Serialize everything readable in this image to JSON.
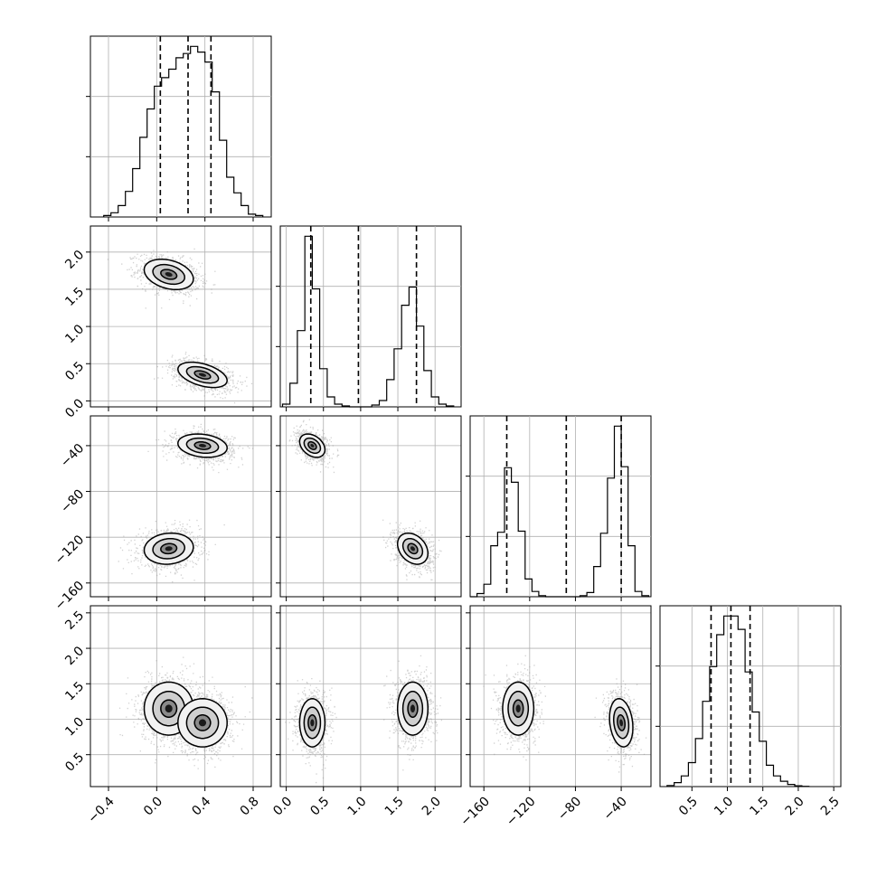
{
  "chart_data": {
    "type": "corner",
    "parameters": [
      "",
      "",
      "",
      ""
    ],
    "axes": [
      {
        "range": [
          -0.55,
          0.95
        ],
        "ticks": [
          -0.4,
          0.0,
          0.4,
          0.8
        ],
        "tick_labels": [
          "−0.4",
          "0.0",
          "0.4",
          "0.8"
        ]
      },
      {
        "range": [
          -0.08,
          2.35
        ],
        "ticks": [
          0.0,
          0.5,
          1.0,
          1.5,
          2.0
        ],
        "tick_labels": [
          "0.0",
          "0.5",
          "1.0",
          "1.5",
          "2.0"
        ]
      },
      {
        "range": [
          -172,
          -14
        ],
        "ticks": [
          -160,
          -120,
          -80,
          -40
        ],
        "tick_labels": [
          "−160",
          "−120",
          "−80",
          "−40"
        ]
      },
      {
        "range": [
          0.05,
          2.6
        ],
        "ticks": [
          0.5,
          1.0,
          1.5,
          2.0,
          2.5
        ],
        "tick_labels": [
          "0.5",
          "1.0",
          "1.5",
          "2.0",
          "2.5"
        ]
      }
    ],
    "quantiles": [
      [
        0.03,
        0.26,
        0.45
      ],
      [
        0.33,
        0.97,
        1.75
      ],
      [
        -140,
        -88,
        -40
      ],
      [
        0.77,
        1.05,
        1.32
      ]
    ],
    "histograms": [
      {
        "edges": [
          -0.44,
          -0.38,
          -0.32,
          -0.26,
          -0.2,
          -0.14,
          -0.08,
          -0.02,
          0.04,
          0.1,
          0.16,
          0.22,
          0.28,
          0.34,
          0.4,
          0.46,
          0.52,
          0.58,
          0.64,
          0.7,
          0.76,
          0.82,
          0.88
        ],
        "counts": [
          5,
          15,
          40,
          90,
          170,
          280,
          380,
          460,
          490,
          520,
          560,
          575,
          600,
          580,
          545,
          440,
          270,
          140,
          85,
          40,
          10,
          5
        ]
      },
      {
        "edges": [
          -0.05,
          0.05,
          0.15,
          0.25,
          0.35,
          0.45,
          0.55,
          0.65,
          0.75,
          0.85,
          0.95,
          1.05,
          1.15,
          1.25,
          1.35,
          1.45,
          1.55,
          1.65,
          1.75,
          1.85,
          1.95,
          2.05,
          2.15,
          2.25
        ],
        "counts": [
          15,
          130,
          420,
          940,
          650,
          210,
          55,
          15,
          5,
          0,
          0,
          0,
          10,
          35,
          150,
          320,
          560,
          660,
          445,
          200,
          55,
          15,
          5
        ]
      },
      {
        "edges": [
          -172,
          -166,
          -160,
          -154,
          -148,
          -142,
          -136,
          -130,
          -124,
          -118,
          -112,
          -106,
          -100,
          -94,
          -88,
          -82,
          -76,
          -70,
          -64,
          -58,
          -52,
          -46,
          -40,
          -34,
          -28,
          -22,
          -16
        ],
        "counts": [
          0,
          15,
          60,
          245,
          310,
          620,
          550,
          315,
          85,
          25,
          5,
          0,
          0,
          0,
          0,
          0,
          5,
          20,
          145,
          305,
          570,
          820,
          625,
          245,
          25,
          5
        ]
      },
      {
        "edges": [
          0.15,
          0.25,
          0.35,
          0.45,
          0.55,
          0.65,
          0.75,
          0.85,
          0.95,
          1.05,
          1.15,
          1.25,
          1.35,
          1.45,
          1.55,
          1.65,
          1.75,
          1.85,
          1.95,
          2.05,
          2.15
        ],
        "counts": [
          4,
          15,
          40,
          90,
          180,
          320,
          450,
          570,
          640,
          640,
          590,
          430,
          280,
          170,
          80,
          40,
          20,
          8,
          3,
          1
        ]
      }
    ],
    "modes": [
      {
        "weight": 0.5,
        "mean": [
          0.1,
          1.7,
          -130,
          1.15
        ],
        "sd": [
          0.12,
          0.12,
          8,
          0.22
        ]
      },
      {
        "weight": 0.5,
        "mean": [
          0.38,
          0.35,
          -40,
          0.95
        ],
        "sd": [
          0.12,
          0.1,
          6,
          0.2
        ]
      }
    ],
    "correlations": [
      {
        "i": 1,
        "j": 0,
        "rho": [
          -0.3,
          -0.45
        ]
      },
      {
        "i": 2,
        "j": 0,
        "rho": [
          0.1,
          -0.2
        ]
      },
      {
        "i": 2,
        "j": 1,
        "rho": [
          -0.3,
          -0.35
        ]
      },
      {
        "i": 3,
        "j": 0,
        "rho": [
          0.0,
          0.0
        ]
      },
      {
        "i": 3,
        "j": 1,
        "rho": [
          0.0,
          0.0
        ]
      },
      {
        "i": 3,
        "j": 2,
        "rho": [
          0.0,
          -0.2
        ]
      }
    ],
    "contour_levels": [
      0.39,
      0.86,
      1.0
    ],
    "grid": true,
    "legend": "none"
  }
}
